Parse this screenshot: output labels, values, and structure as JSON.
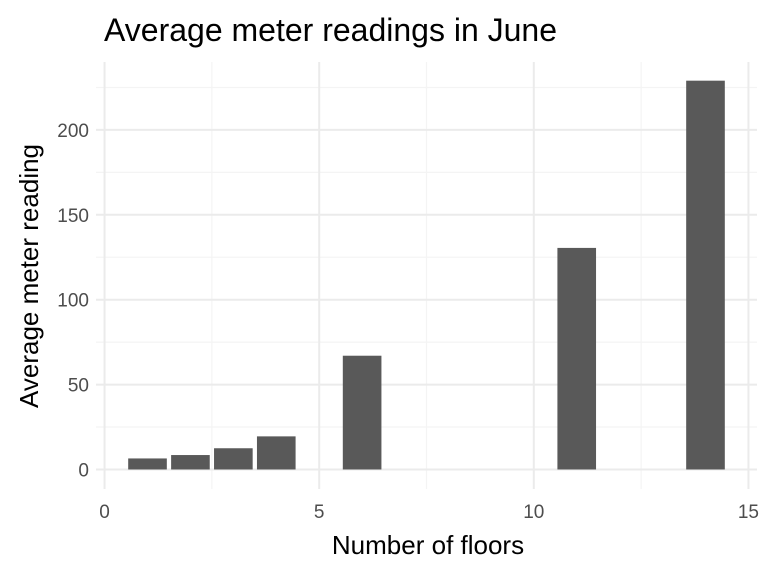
{
  "chart_data": {
    "type": "bar",
    "title": "Average meter readings in June",
    "xlabel": "Number of floors",
    "ylabel": "Average meter reading",
    "x": [
      1,
      2,
      3,
      4,
      6,
      11,
      14
    ],
    "values": [
      6.5,
      8.5,
      12.5,
      19.5,
      67,
      130.5,
      229
    ],
    "xlim": [
      -0.2,
      15.2
    ],
    "ylim": [
      -11.5,
      240
    ],
    "x_ticks": [
      0,
      5,
      10,
      15
    ],
    "y_ticks": [
      0,
      50,
      100,
      150,
      200
    ],
    "bar_color": "#595959",
    "grid": true,
    "legend": "none"
  }
}
